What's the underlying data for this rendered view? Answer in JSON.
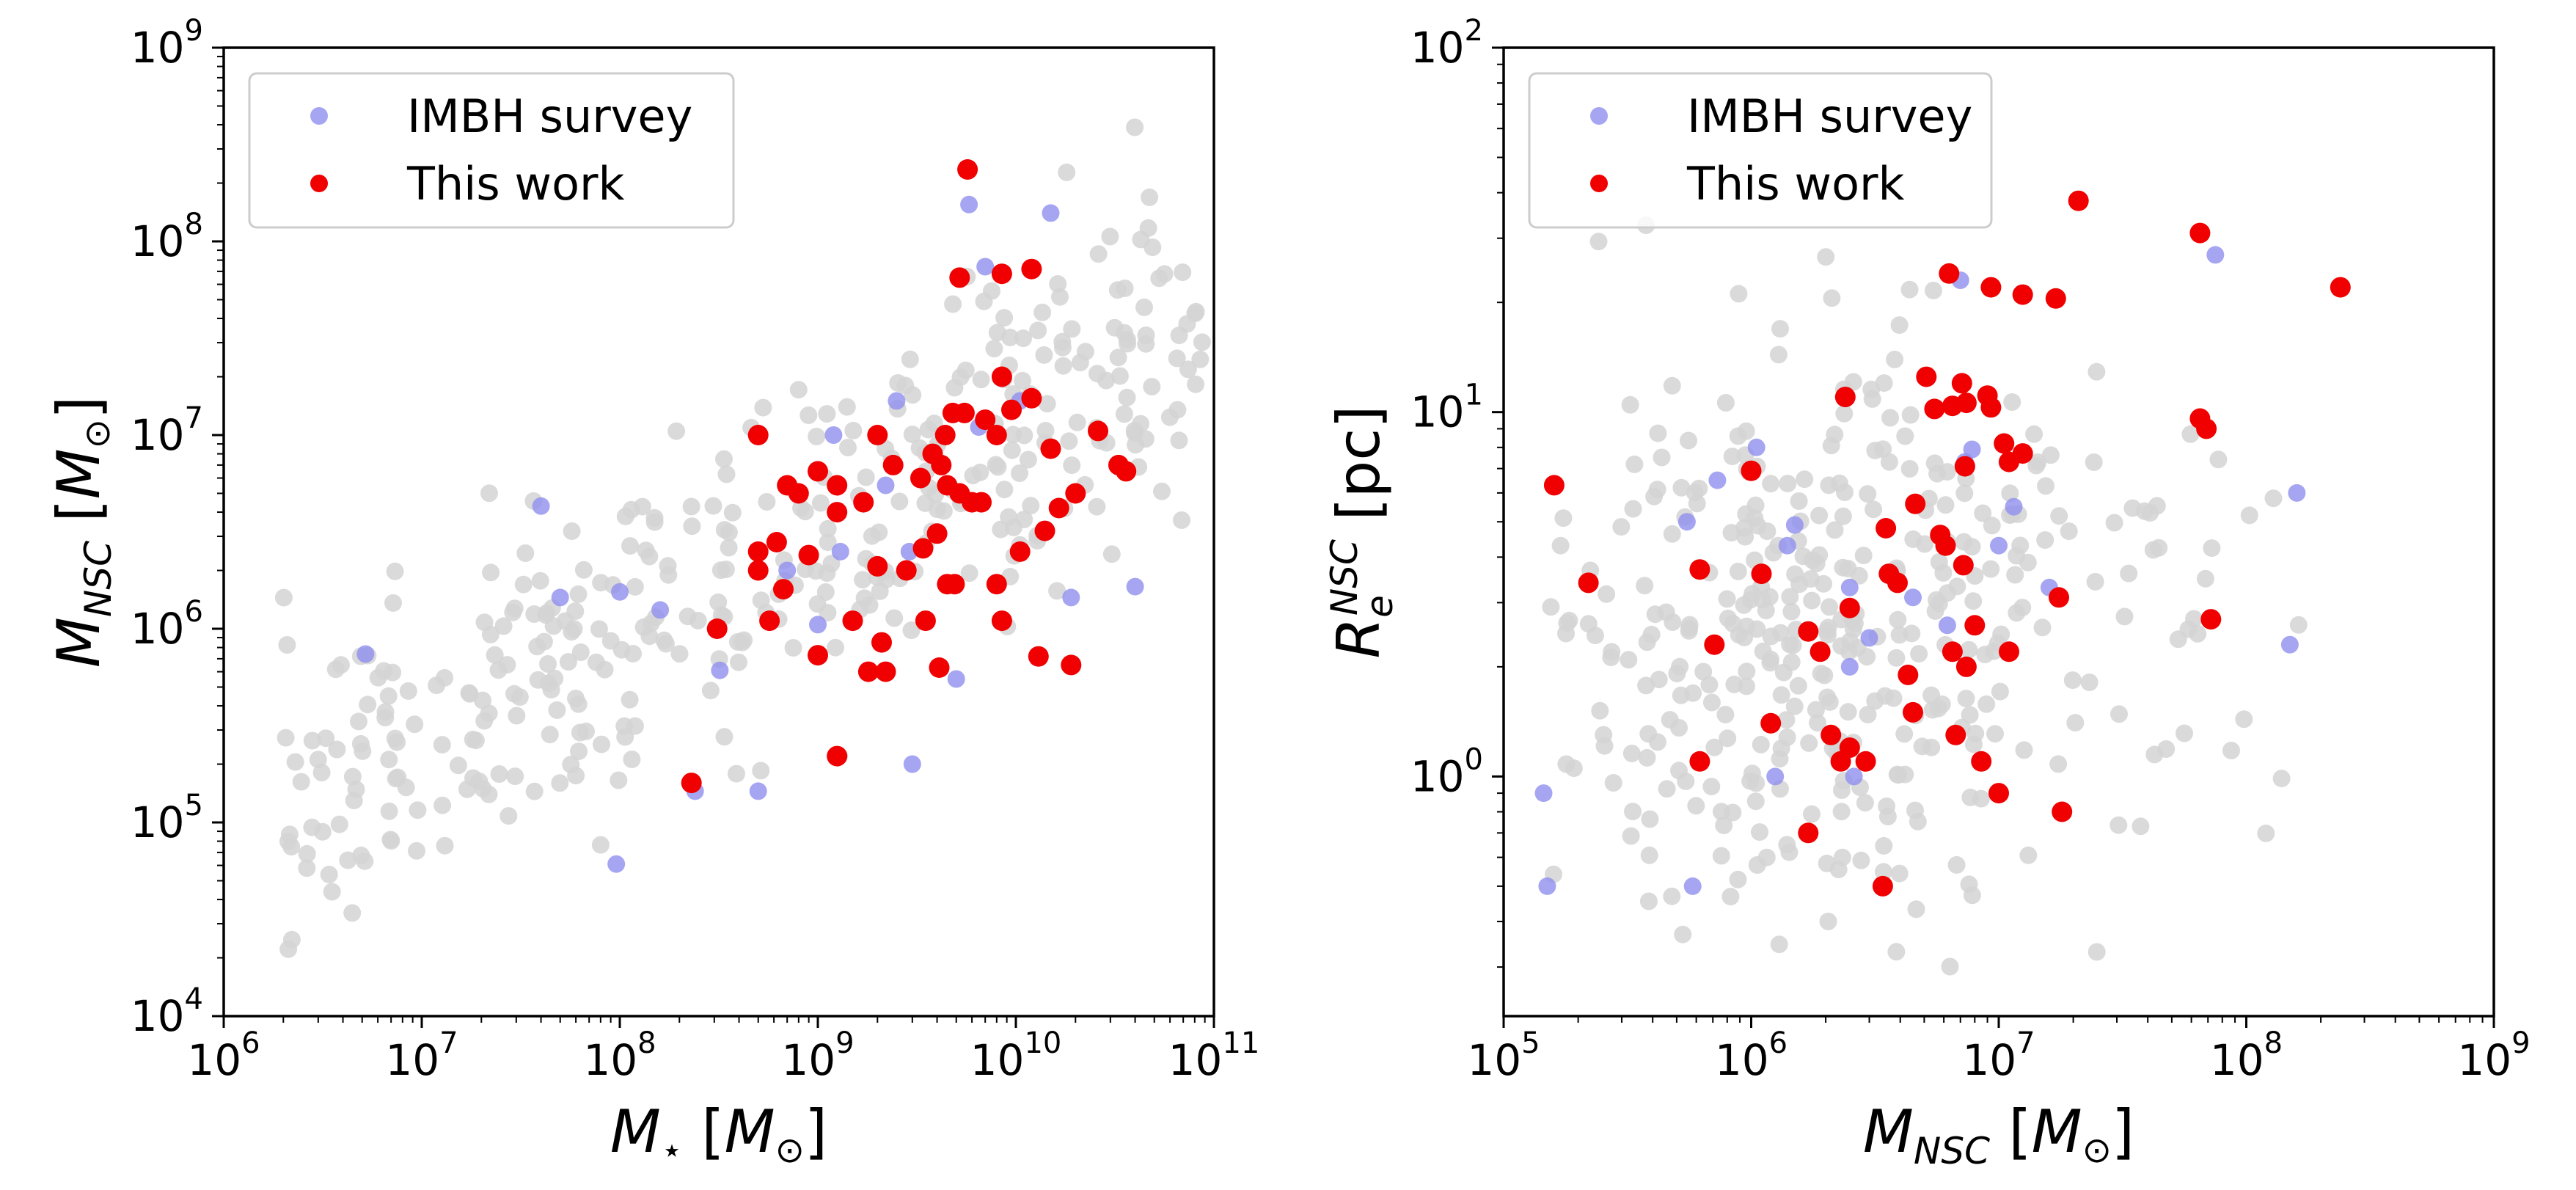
{
  "colors": {
    "background": "#d3d3d3",
    "imbh": "#8f8fef",
    "this_work": "#f00000"
  },
  "chart_data": [
    {
      "type": "scatter",
      "title": "",
      "xlabel": "M⋆ [M⊙]",
      "ylabel": "MNSC [M⊙]",
      "xscale": "log",
      "yscale": "log",
      "xlim": [
        1000000.0,
        100000000000.0
      ],
      "ylim": [
        10000.0,
        1000000000.0
      ],
      "xticks": [
        {
          "value": 1000000.0,
          "base": "10",
          "exp": "6"
        },
        {
          "value": 10000000.0,
          "base": "10",
          "exp": "7"
        },
        {
          "value": 100000000.0,
          "base": "10",
          "exp": "8"
        },
        {
          "value": 1000000000.0,
          "base": "10",
          "exp": "9"
        },
        {
          "value": 10000000000.0,
          "base": "10",
          "exp": "10"
        },
        {
          "value": 100000000000.0,
          "base": "10",
          "exp": "11"
        }
      ],
      "yticks": [
        {
          "value": 10000.0,
          "base": "10",
          "exp": "4"
        },
        {
          "value": 100000.0,
          "base": "10",
          "exp": "5"
        },
        {
          "value": 1000000.0,
          "base": "10",
          "exp": "6"
        },
        {
          "value": 10000000.0,
          "base": "10",
          "exp": "7"
        },
        {
          "value": 100000000.0,
          "base": "10",
          "exp": "8"
        },
        {
          "value": 1000000000.0,
          "base": "10",
          "exp": "9"
        }
      ],
      "legend_position": "top-left",
      "grid": false,
      "series": [
        {
          "name": "IMBH survey",
          "color": "#8f8fef",
          "points": [
            [
              5200000.0,
              740000.0
            ],
            [
              40000000.0,
              4300000.0
            ],
            [
              50000000.0,
              1450000.0
            ],
            [
              100000000.0,
              1550000.0
            ],
            [
              160000000.0,
              1250000.0
            ],
            [
              96000000.0,
              61000.0
            ],
            [
              320000000.0,
              610000.0
            ],
            [
              500000000.0,
              145000.0
            ],
            [
              1000000000.0,
              1050000.0
            ],
            [
              1200000000.0,
              10000000.0
            ],
            [
              2500000000.0,
              15000000.0
            ],
            [
              2900000000.0,
              2500000.0
            ],
            [
              5000000000.0,
              550000.0
            ],
            [
              5800000000.0,
              155000000.0
            ],
            [
              7000000000.0,
              74000000.0
            ],
            [
              10500000000.0,
              15000000.0
            ],
            [
              15000000000.0,
              140000000.0
            ],
            [
              19000000000.0,
              1450000.0
            ],
            [
              40000000000.0,
              1650000.0
            ],
            [
              700000000.0,
              2000000.0
            ],
            [
              3000000000.0,
              200000.0
            ],
            [
              2200000000.0,
              5500000.0
            ],
            [
              6500000000.0,
              11000000.0
            ],
            [
              1300000000.0,
              2500000.0
            ],
            [
              240000000.0,
              145000.0
            ]
          ]
        },
        {
          "name": "This work",
          "color": "#f00000",
          "points": [
            [
              5700000000.0,
              235000000.0
            ],
            [
              12000000000.0,
              72000000.0
            ],
            [
              5200000000.0,
              65000000.0
            ],
            [
              8500000000.0,
              68000000.0
            ],
            [
              8500000000.0,
              20000000.0
            ],
            [
              4400000000.0,
              10000000.0
            ],
            [
              4800000000.0,
              13000000.0
            ],
            [
              5500000000.0,
              13000000.0
            ],
            [
              7000000000.0,
              12000000.0
            ],
            [
              8000000000.0,
              10000000.0
            ],
            [
              9500000000.0,
              13500000.0
            ],
            [
              12000000000.0,
              15500000.0
            ],
            [
              15000000000.0,
              8500000.0
            ],
            [
              26000000000.0,
              10500000.0
            ],
            [
              33000000000.0,
              7000000.0
            ],
            [
              36000000000.0,
              6500000.0
            ],
            [
              20000000000.0,
              5000000.0
            ],
            [
              16500000000.0,
              4200000.0
            ],
            [
              14000000000.0,
              3200000.0
            ],
            [
              500000000.0,
              10000000.0
            ],
            [
              700000000.0,
              5500000.0
            ],
            [
              800000000.0,
              5000000.0
            ],
            [
              1000000000.0,
              6500000.0
            ],
            [
              1250000000.0,
              5500000.0
            ],
            [
              1700000000.0,
              4500000.0
            ],
            [
              2000000000.0,
              10000000.0
            ],
            [
              2400000000.0,
              7000000.0
            ],
            [
              3300000000.0,
              6000000.0
            ],
            [
              3800000000.0,
              8000000.0
            ],
            [
              4200000000.0,
              7000000.0
            ],
            [
              4500000000.0,
              5500000.0
            ],
            [
              5200000000.0,
              5000000.0
            ],
            [
              6000000000.0,
              4500000.0
            ],
            [
              6700000000.0,
              4500000.0
            ],
            [
              500000000.0,
              2500000.0
            ],
            [
              500000000.0,
              2000000.0
            ],
            [
              620000000.0,
              2800000.0
            ],
            [
              900000000.0,
              2400000.0
            ],
            [
              1250000000.0,
              4000000.0
            ],
            [
              2000000000.0,
              2100000.0
            ],
            [
              2800000000.0,
              2000000.0
            ],
            [
              3400000000.0,
              2600000.0
            ],
            [
              4000000000.0,
              3100000.0
            ],
            [
              4500000000.0,
              1700000.0
            ],
            [
              4900000000.0,
              1700000.0
            ],
            [
              310000000.0,
              1000000.0
            ],
            [
              570000000.0,
              1100000.0
            ],
            [
              670000000.0,
              1600000.0
            ],
            [
              1000000000.0,
              730000.0
            ],
            [
              1500000000.0,
              1100000.0
            ],
            [
              2100000000.0,
              850000.0
            ],
            [
              2200000000.0,
              600000.0
            ],
            [
              4100000000.0,
              630000.0
            ],
            [
              8000000000.0,
              1700000.0
            ],
            [
              8500000000.0,
              1100000.0
            ],
            [
              10500000000.0,
              2500000.0
            ],
            [
              13000000000.0,
              720000.0
            ],
            [
              19000000000.0,
              650000.0
            ],
            [
              1250000000.0,
              220000.0
            ],
            [
              230000000.0,
              160000.0
            ],
            [
              3500000000.0,
              1100000.0
            ],
            [
              1800000000.0,
              600000.0
            ]
          ]
        }
      ]
    },
    {
      "type": "scatter",
      "title": "",
      "xlabel": "MNSC [M⊙]",
      "ylabel": "ReNSC [pc]",
      "xscale": "log",
      "yscale": "log",
      "xlim": [
        100000.0,
        1000000000.0
      ],
      "ylim": [
        0.22,
        100
      ],
      "xticks": [
        {
          "value": 100000.0,
          "base": "10",
          "exp": "5"
        },
        {
          "value": 1000000.0,
          "base": "10",
          "exp": "6"
        },
        {
          "value": 10000000.0,
          "base": "10",
          "exp": "7"
        },
        {
          "value": 100000000.0,
          "base": "10",
          "exp": "8"
        },
        {
          "value": 1000000000.0,
          "base": "10",
          "exp": "9"
        }
      ],
      "yticks": [
        {
          "value": 1,
          "base": "10",
          "exp": "0"
        },
        {
          "value": 10,
          "base": "10",
          "exp": "1"
        },
        {
          "value": 100,
          "base": "10",
          "exp": "2"
        }
      ],
      "legend_position": "top-left",
      "grid": false,
      "series": [
        {
          "name": "IMBH survey",
          "color": "#8f8fef",
          "points": [
            [
              145000.0,
              0.9
            ],
            [
              150000.0,
              0.5
            ],
            [
              550000.0,
              5.0
            ],
            [
              580000.0,
              0.5
            ],
            [
              730000.0,
              6.5
            ],
            [
              1050000.0,
              8
            ],
            [
              1250000.0,
              1.0
            ],
            [
              1400000.0,
              4.3
            ],
            [
              1500000.0,
              4.9
            ],
            [
              2500000.0,
              3.3
            ],
            [
              2500000.0,
              2.0
            ],
            [
              3000000.0,
              2.4
            ],
            [
              6200000.0,
              2.6
            ],
            [
              7000000.0,
              23
            ],
            [
              7800000.0,
              7.9
            ],
            [
              10000000.0,
              4.3
            ],
            [
              11500000.0,
              5.5
            ],
            [
              16000000.0,
              3.3
            ],
            [
              75000000.0,
              27
            ],
            [
              150000000.0,
              2.3
            ],
            [
              160000000.0,
              6
            ],
            [
              4500000.0,
              3.1
            ],
            [
              2600000.0,
              1.0
            ],
            [
              7300000.0,
              7.3
            ]
          ]
        },
        {
          "name": "This work",
          "color": "#f00000",
          "points": [
            [
              160000.0,
              6.3
            ],
            [
              220000.0,
              3.4
            ],
            [
              620000.0,
              3.7
            ],
            [
              620000.0,
              1.1
            ],
            [
              710000.0,
              2.3
            ],
            [
              1000000.0,
              6.9
            ],
            [
              1100000.0,
              3.6
            ],
            [
              1200000.0,
              1.4
            ],
            [
              1700000.0,
              2.5
            ],
            [
              1700000.0,
              0.7
            ],
            [
              1900000.0,
              2.2
            ],
            [
              2100000.0,
              1.3
            ],
            [
              2300000.0,
              1.1
            ],
            [
              2400000.0,
              11
            ],
            [
              2500000.0,
              2.9
            ],
            [
              2500000.0,
              1.2
            ],
            [
              2900000.0,
              1.1
            ],
            [
              3400000.0,
              0.5
            ],
            [
              3500000.0,
              4.8
            ],
            [
              3600000.0,
              3.6
            ],
            [
              3900000.0,
              3.4
            ],
            [
              4300000.0,
              1.9
            ],
            [
              4500000.0,
              1.5
            ],
            [
              4600000.0,
              5.6
            ],
            [
              5100000.0,
              12.5
            ],
            [
              5500000.0,
              10.2
            ],
            [
              5800000.0,
              4.6
            ],
            [
              6100000.0,
              4.3
            ],
            [
              6300000.0,
              24
            ],
            [
              6500000.0,
              10.4
            ],
            [
              6500000.0,
              2.2
            ],
            [
              6700000.0,
              1.3
            ],
            [
              7100000.0,
              12
            ],
            [
              7400000.0,
              10.6
            ],
            [
              7300000.0,
              7.1
            ],
            [
              7200000.0,
              3.8
            ],
            [
              7400000.0,
              2.0
            ],
            [
              8500000.0,
              1.1
            ],
            [
              9000000.0,
              11.1
            ],
            [
              9300000.0,
              10.3
            ],
            [
              9300000.0,
              22
            ],
            [
              10000000.0,
              0.9
            ],
            [
              10500000.0,
              8.2
            ],
            [
              11000000.0,
              7.3
            ],
            [
              12500000.0,
              7.7
            ],
            [
              12500000.0,
              21
            ],
            [
              17000000.0,
              20.5
            ],
            [
              17500000.0,
              3.1
            ],
            [
              18000000.0,
              0.8
            ],
            [
              21000000.0,
              38
            ],
            [
              65000000.0,
              31
            ],
            [
              65000000.0,
              9.6
            ],
            [
              69000000.0,
              9
            ],
            [
              72000000.0,
              2.7
            ],
            [
              240000000.0,
              22
            ],
            [
              11000000.0,
              2.2
            ],
            [
              8000000.0,
              2.6
            ]
          ]
        }
      ]
    }
  ]
}
